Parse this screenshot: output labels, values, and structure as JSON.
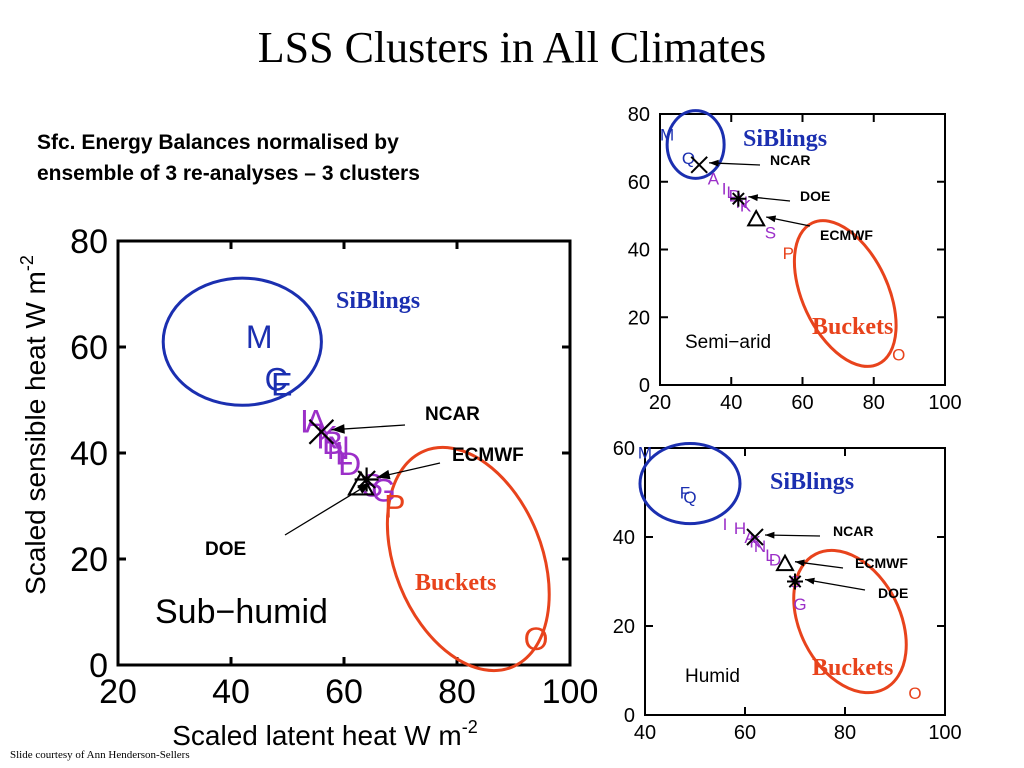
{
  "title": "LSS Clusters in All Climates",
  "subtitle_line1": "Sfc. Energy Balances normalised by",
  "subtitle_line2": "ensemble of 3 re-analyses –  3 clusters",
  "footer": "Slide courtesy of Ann Henderson-Sellers",
  "colors": {
    "siblings": "#1b2fb0",
    "buckets": "#e8431c",
    "purple": "#9b2fc8",
    "black": "#000000"
  },
  "chart_data": [
    {
      "type": "scatter",
      "panel": "Sub-humid",
      "title": "",
      "region_label": "Sub−humid",
      "xlabel": "Scaled latent heat W m",
      "ylabel": "Scaled sensible heat W m",
      "unit_superscript": "-2",
      "xlim": [
        20,
        100
      ],
      "ylim": [
        0,
        80
      ],
      "xticks": [
        "20",
        "40",
        "60",
        "80",
        "100"
      ],
      "yticks": [
        "0",
        "20",
        "40",
        "60",
        "80"
      ],
      "cluster_labels": {
        "siblings": "SiBlings",
        "buckets": "Buckets"
      },
      "clusters": {
        "siblings": {
          "cx": 42,
          "cy": 61,
          "rx": 14,
          "ry": 12
        },
        "buckets": {
          "cx": 82,
          "cy": 20,
          "rx": 13,
          "ry": 22,
          "rotate": -22
        }
      },
      "points": [
        {
          "label": "M",
          "x": 45,
          "y": 62,
          "color": "siblings"
        },
        {
          "label": "C",
          "x": 48,
          "y": 54,
          "color": "siblings"
        },
        {
          "label": "E",
          "x": 49,
          "y": 53,
          "color": "siblings"
        },
        {
          "label": "I",
          "x": 53,
          "y": 46,
          "color": "purple"
        },
        {
          "label": "A",
          "x": 55,
          "y": 46,
          "color": "purple"
        },
        {
          "label": "K",
          "x": 57,
          "y": 43,
          "color": "purple"
        },
        {
          "label": "B",
          "x": 58,
          "y": 42,
          "color": "purple"
        },
        {
          "label": "N",
          "x": 59,
          "y": 41,
          "color": "purple"
        },
        {
          "label": "L",
          "x": 60,
          "y": 40,
          "color": "purple"
        },
        {
          "label": "D",
          "x": 61,
          "y": 38,
          "color": "purple"
        },
        {
          "label": "S",
          "x": 65,
          "y": 34,
          "color": "purple"
        },
        {
          "label": "G",
          "x": 67,
          "y": 33,
          "color": "purple"
        },
        {
          "label": "P",
          "x": 69,
          "y": 30,
          "color": "buckets"
        },
        {
          "label": "O",
          "x": 94,
          "y": 5,
          "color": "buckets"
        }
      ],
      "reanalyses": [
        {
          "name": "NCAR",
          "marker": "x",
          "x": 56,
          "y": 44
        },
        {
          "name": "ECMWF",
          "marker": "*",
          "x": 64,
          "y": 35
        },
        {
          "name": "DOE",
          "marker": "triangle",
          "x": 63,
          "y": 34
        }
      ]
    },
    {
      "type": "scatter",
      "panel": "Semi-arid",
      "title": "",
      "region_label": "Semi−arid",
      "xlabel": "",
      "ylabel": "",
      "xlim": [
        20,
        100
      ],
      "ylim": [
        0,
        80
      ],
      "xticks": [
        "20",
        "40",
        "60",
        "80",
        "100"
      ],
      "yticks": [
        "0",
        "20",
        "40",
        "60",
        "80"
      ],
      "cluster_labels": {
        "siblings": "SiBlings",
        "buckets": "Buckets"
      },
      "clusters": {
        "siblings": {
          "cx": 30,
          "cy": 71,
          "rx": 8,
          "ry": 10
        },
        "buckets": {
          "cx": 72,
          "cy": 27,
          "rx": 12,
          "ry": 23,
          "rotate": -25
        }
      },
      "points": [
        {
          "label": "M",
          "x": 22,
          "y": 74,
          "color": "siblings"
        },
        {
          "label": "Q",
          "x": 28,
          "y": 67,
          "color": "siblings"
        },
        {
          "label": "A",
          "x": 35,
          "y": 61,
          "color": "purple"
        },
        {
          "label": "I",
          "x": 38,
          "y": 58,
          "color": "purple"
        },
        {
          "label": "L",
          "x": 40,
          "y": 57,
          "color": "purple"
        },
        {
          "label": "D",
          "x": 41,
          "y": 56,
          "color": "purple"
        },
        {
          "label": "N",
          "x": 43,
          "y": 54,
          "color": "purple"
        },
        {
          "label": "K",
          "x": 44,
          "y": 53,
          "color": "purple"
        },
        {
          "label": "S",
          "x": 51,
          "y": 45,
          "color": "purple"
        },
        {
          "label": "P",
          "x": 56,
          "y": 39,
          "color": "buckets"
        },
        {
          "label": "O",
          "x": 87,
          "y": 9,
          "color": "buckets"
        }
      ],
      "reanalyses": [
        {
          "name": "NCAR",
          "marker": "x",
          "x": 31,
          "y": 65
        },
        {
          "name": "DOE",
          "marker": "*",
          "x": 42,
          "y": 55
        },
        {
          "name": "ECMWF",
          "marker": "triangle",
          "x": 47,
          "y": 49
        }
      ]
    },
    {
      "type": "scatter",
      "panel": "Humid",
      "title": "",
      "region_label": "Humid",
      "xlabel": "",
      "ylabel": "",
      "xlim": [
        40,
        100
      ],
      "ylim": [
        0,
        60
      ],
      "xticks": [
        "40",
        "60",
        "80",
        "100"
      ],
      "yticks": [
        "0",
        "20",
        "40",
        "60"
      ],
      "cluster_labels": {
        "siblings": "SiBlings",
        "buckets": "Buckets"
      },
      "clusters": {
        "siblings": {
          "cx": 49,
          "cy": 52,
          "rx": 10,
          "ry": 9
        },
        "buckets": {
          "cx": 81,
          "cy": 21,
          "rx": 10,
          "ry": 17,
          "rotate": -27
        }
      },
      "points": [
        {
          "label": "M",
          "x": 40,
          "y": 59,
          "color": "siblings"
        },
        {
          "label": "F",
          "x": 48,
          "y": 50,
          "color": "siblings"
        },
        {
          "label": "Q",
          "x": 49,
          "y": 49,
          "color": "siblings"
        },
        {
          "label": "I",
          "x": 56,
          "y": 43,
          "color": "purple"
        },
        {
          "label": "H",
          "x": 59,
          "y": 42,
          "color": "purple"
        },
        {
          "label": "A",
          "x": 61,
          "y": 40,
          "color": "purple"
        },
        {
          "label": "K",
          "x": 62,
          "y": 39,
          "color": "purple"
        },
        {
          "label": "N",
          "x": 63,
          "y": 38,
          "color": "purple"
        },
        {
          "label": "L",
          "x": 65,
          "y": 36,
          "color": "purple"
        },
        {
          "label": "D",
          "x": 66,
          "y": 35,
          "color": "purple"
        },
        {
          "label": "S",
          "x": 70,
          "y": 30,
          "color": "purple"
        },
        {
          "label": "G",
          "x": 71,
          "y": 25,
          "color": "purple"
        },
        {
          "label": "O",
          "x": 94,
          "y": 5,
          "color": "buckets"
        }
      ],
      "reanalyses": [
        {
          "name": "NCAR",
          "marker": "x",
          "x": 62,
          "y": 40
        },
        {
          "name": "ECMWF",
          "marker": "triangle",
          "x": 68,
          "y": 34
        },
        {
          "name": "DOE",
          "marker": "*",
          "x": 70,
          "y": 30
        }
      ]
    }
  ]
}
